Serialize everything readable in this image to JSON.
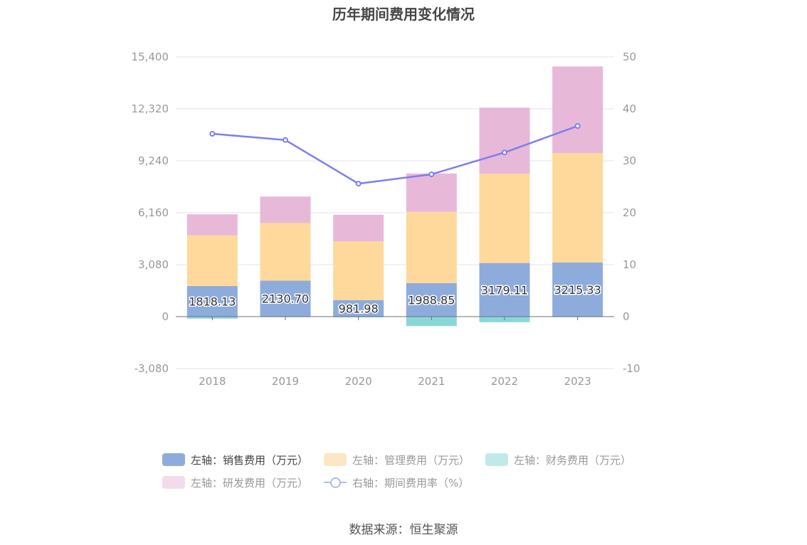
{
  "chart_data": {
    "type": "bar",
    "title": "历年期间费用变化情况",
    "categories": [
      "2018",
      "2019",
      "2020",
      "2021",
      "2022",
      "2023"
    ],
    "series": [
      {
        "name": "左轴：销售费用（万元）",
        "axis": "left",
        "color": "#8eacdb",
        "values": [
          1818.13,
          2130.7,
          981.98,
          1988.85,
          3179.11,
          3215.33
        ]
      },
      {
        "name": "左轴：管理费用（万元）",
        "axis": "left",
        "color": "#fed99b",
        "values": [
          3000,
          3420,
          3480,
          4230,
          5300,
          6490
        ]
      },
      {
        "name": "左轴：财务费用（万元）",
        "axis": "left",
        "color": "#88d8d8",
        "values": [
          -120,
          -30,
          -40,
          -560,
          -330,
          -30
        ]
      },
      {
        "name": "左轴：研发费用（万元）",
        "axis": "left",
        "color": "#e8b8d9",
        "values": [
          1250,
          1570,
          1580,
          2270,
          3910,
          5130
        ]
      },
      {
        "name": "右轴：期间费用率（%）",
        "axis": "right",
        "type": "line",
        "color": "#7c7ff0",
        "values": [
          35.2,
          34.0,
          25.6,
          27.4,
          31.6,
          36.7
        ]
      }
    ],
    "data_labels": [
      "1818.13",
      "2130.70",
      "981.98",
      "1988.85",
      "3179.11",
      "3215.33"
    ],
    "yleft": {
      "min": -3080,
      "max": 15400,
      "ticks": [
        -3080,
        0,
        3080,
        6160,
        9240,
        12320,
        15400
      ],
      "tick_labels": [
        "-3,080",
        "0",
        "3,080",
        "6,160",
        "9,240",
        "12,320",
        "15,400"
      ]
    },
    "yright": {
      "min": -10,
      "max": 50,
      "ticks": [
        -10,
        0,
        10,
        20,
        30,
        40,
        50
      ],
      "tick_labels": [
        "-10",
        "0",
        "10",
        "20",
        "30",
        "40",
        "50"
      ]
    },
    "legend": [
      {
        "label": "左轴：销售费用（万元）",
        "color": "#8eacdb",
        "shape": "box"
      },
      {
        "label": "左轴：管理费用（万元）",
        "color": "#fde6c3",
        "shape": "box"
      },
      {
        "label": "左轴：财务费用（万元）",
        "color": "#c2e9ea",
        "shape": "box"
      },
      {
        "label": "左轴：研发费用（万元）",
        "color": "#f2dcec",
        "shape": "box"
      },
      {
        "label": "右轴：期间费用率（%）",
        "color": "#b3b8f6",
        "shape": "line"
      }
    ],
    "grid": true,
    "legend_position": "bottom"
  },
  "source": "数据来源：恒生聚源"
}
